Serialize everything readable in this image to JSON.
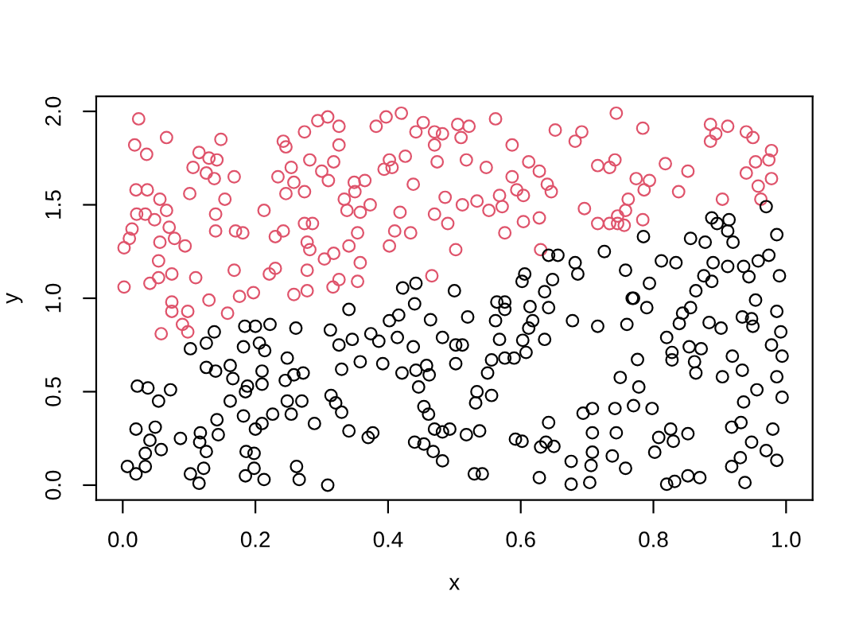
{
  "chart_data": {
    "type": "scatter",
    "xlabel": "x",
    "ylabel": "y",
    "xlim": [
      -0.04,
      1.04
    ],
    "ylim": [
      -0.08,
      2.08
    ],
    "xticks": [
      {
        "value": 0,
        "label": "0.0"
      },
      {
        "value": 0.2,
        "label": "0.2"
      },
      {
        "value": 0.4,
        "label": "0.4"
      },
      {
        "value": 0.6,
        "label": "0.6"
      },
      {
        "value": 0.8,
        "label": "0.8"
      },
      {
        "value": 1,
        "label": "1.0"
      }
    ],
    "yticks": [
      {
        "value": 0,
        "label": "0.0"
      },
      {
        "value": 0.5,
        "label": "0.5"
      },
      {
        "value": 1,
        "label": "1.0"
      },
      {
        "value": 1.5,
        "label": "1.5"
      },
      {
        "value": 2,
        "label": "2.0"
      }
    ],
    "marker": "circle",
    "grid": false,
    "series": [
      {
        "color": "#df536b",
        "x": [
          0.024,
          0.018,
          0.036,
          0.066,
          0.002,
          0.01,
          0.014,
          0.021,
          0.034,
          0.048,
          0.02,
          0.037,
          0.056,
          0.066,
          0.07,
          0.078,
          0.094,
          0.056,
          0.002,
          0.041,
          0.054,
          0.074,
          0.054,
          0.074,
          0.074,
          0.09,
          0.098,
          0.058,
          0.098,
          0.11,
          0.101,
          0.115,
          0.13,
          0.142,
          0.148,
          0.106,
          0.126,
          0.138,
          0.168,
          0.154,
          0.14,
          0.14,
          0.17,
          0.181,
          0.168,
          0.13,
          0.158,
          0.176,
          0.197,
          0.213,
          0.23,
          0.242,
          0.221,
          0.23,
          0.242,
          0.246,
          0.234,
          0.254,
          0.246,
          0.258,
          0.274,
          0.274,
          0.294,
          0.309,
          0.326,
          0.326,
          0.282,
          0.3,
          0.31,
          0.318,
          0.274,
          0.286,
          0.278,
          0.282,
          0.278,
          0.258,
          0.278,
          0.304,
          0.318,
          0.326,
          0.317,
          0.341,
          0.354,
          0.358,
          0.354,
          0.338,
          0.334,
          0.35,
          0.349,
          0.365,
          0.373,
          0.358,
          0.382,
          0.397,
          0.42,
          0.453,
          0.442,
          0.47,
          0.482,
          0.47,
          0.402,
          0.426,
          0.394,
          0.406,
          0.438,
          0.418,
          0.41,
          0.434,
          0.402,
          0.474,
          0.486,
          0.47,
          0.49,
          0.502,
          0.466,
          0.505,
          0.51,
          0.522,
          0.518,
          0.512,
          0.534,
          0.552,
          0.548,
          0.562,
          0.568,
          0.572,
          0.587,
          0.587,
          0.594,
          0.604,
          0.612,
          0.604,
          0.576,
          0.628,
          0.64,
          0.646,
          0.628,
          0.63,
          0.652,
          0.682,
          0.692,
          0.696,
          0.716,
          0.734,
          0.742,
          0.744,
          0.716,
          0.734,
          0.746,
          0.756,
          0.746,
          0.758,
          0.762,
          0.774,
          0.786,
          0.794,
          0.784,
          0.784,
          0.818,
          0.838,
          0.852,
          0.886,
          0.886,
          0.894,
          0.912,
          0.94,
          0.95,
          0.904,
          0.94,
          0.954,
          0.974,
          0.978,
          0.978,
          0.958,
          0.962
        ],
        "values": [
          1.96,
          1.82,
          1.77,
          1.86,
          1.27,
          1.32,
          1.37,
          1.45,
          1.45,
          1.42,
          1.58,
          1.58,
          1.53,
          1.47,
          1.38,
          1.32,
          1.28,
          1.3,
          1.06,
          1.08,
          1.11,
          1.13,
          1.2,
          0.98,
          0.93,
          0.86,
          0.82,
          0.81,
          0.93,
          1.11,
          1.56,
          1.78,
          1.75,
          1.74,
          1.85,
          1.7,
          1.67,
          1.64,
          1.65,
          1.53,
          1.45,
          1.36,
          1.36,
          1.35,
          1.15,
          0.99,
          0.92,
          1.01,
          1.03,
          1.47,
          1.33,
          1.36,
          1.13,
          1.16,
          1.84,
          1.81,
          1.65,
          1.7,
          1.56,
          1.62,
          1.57,
          1.89,
          1.95,
          1.97,
          1.92,
          1.82,
          1.74,
          1.68,
          1.63,
          1.73,
          1.4,
          1.4,
          1.3,
          1.26,
          1.15,
          1.02,
          1.04,
          1.21,
          1.24,
          1.1,
          1.06,
          1.28,
          1.35,
          1.19,
          1.09,
          1.47,
          1.53,
          1.57,
          1.62,
          1.63,
          1.5,
          1.46,
          1.92,
          1.97,
          1.99,
          1.94,
          1.89,
          1.89,
          1.88,
          1.82,
          1.74,
          1.76,
          1.69,
          1.7,
          1.61,
          1.46,
          1.36,
          1.35,
          1.28,
          1.73,
          1.54,
          1.45,
          1.4,
          1.26,
          1.12,
          1.93,
          1.86,
          1.92,
          1.74,
          1.5,
          1.52,
          1.47,
          1.7,
          1.96,
          1.55,
          1.49,
          1.82,
          1.65,
          1.58,
          1.55,
          1.73,
          1.41,
          1.35,
          1.68,
          1.61,
          1.57,
          1.43,
          1.26,
          1.9,
          1.84,
          1.89,
          1.48,
          1.71,
          1.7,
          1.74,
          1.99,
          1.4,
          1.4,
          1.4,
          1.39,
          1.44,
          1.47,
          1.53,
          1.64,
          1.58,
          1.63,
          1.91,
          1.42,
          1.72,
          1.57,
          1.68,
          1.93,
          1.84,
          1.88,
          1.92,
          1.89,
          1.86,
          1.53,
          1.67,
          1.73,
          1.74,
          1.79,
          1.64,
          1.6,
          1.53
        ]
      },
      {
        "color": "#000000",
        "x": [
          0.022,
          0.038,
          0.054,
          0.072,
          0.02,
          0.049,
          0.041,
          0.058,
          0.034,
          0.007,
          0.02,
          0.034,
          0.087,
          0.117,
          0.116,
          0.126,
          0.122,
          0.102,
          0.115,
          0.144,
          0.142,
          0.162,
          0.166,
          0.185,
          0.188,
          0.182,
          0.2,
          0.21,
          0.186,
          0.198,
          0.185,
          0.198,
          0.213,
          0.226,
          0.248,
          0.254,
          0.27,
          0.262,
          0.266,
          0.289,
          0.309,
          0.314,
          0.321,
          0.33,
          0.341,
          0.37,
          0.377,
          0.245,
          0.258,
          0.272,
          0.21,
          0.21,
          0.248,
          0.214,
          0.206,
          0.184,
          0.2,
          0.222,
          0.261,
          0.182,
          0.162,
          0.14,
          0.126,
          0.126,
          0.138,
          0.102,
          0.313,
          0.326,
          0.346,
          0.358,
          0.33,
          0.341,
          0.374,
          0.386,
          0.392,
          0.402,
          0.414,
          0.416,
          0.422,
          0.442,
          0.44,
          0.464,
          0.482,
          0.438,
          0.421,
          0.442,
          0.446,
          0.458,
          0.462,
          0.454,
          0.461,
          0.47,
          0.482,
          0.493,
          0.44,
          0.454,
          0.468,
          0.482,
          0.5,
          0.502,
          0.502,
          0.52,
          0.512,
          0.518,
          0.538,
          0.53,
          0.542,
          0.534,
          0.532,
          0.556,
          0.55,
          0.556,
          0.576,
          0.59,
          0.568,
          0.562,
          0.564,
          0.576,
          0.576,
          0.603,
          0.608,
          0.612,
          0.618,
          0.614,
          0.602,
          0.606,
          0.636,
          0.648,
          0.642,
          0.636,
          0.642,
          0.656,
          0.682,
          0.686,
          0.678,
          0.726,
          0.716,
          0.758,
          0.76,
          0.768,
          0.79,
          0.794,
          0.785,
          0.812,
          0.834,
          0.844,
          0.839,
          0.82,
          0.828,
          0.828,
          0.856,
          0.854,
          0.862,
          0.872,
          0.864,
          0.856,
          0.878,
          0.888,
          0.896,
          0.914,
          0.912,
          0.92,
          0.89,
          0.876,
          0.888,
          0.864,
          0.912,
          0.936,
          0.944,
          0.958,
          0.974,
          0.986,
          0.97,
          0.99,
          0.954,
          0.884,
          0.902,
          0.934,
          0.948,
          0.95,
          0.986,
          0.992,
          0.978,
          0.994,
          0.986,
          0.919,
          0.904,
          0.934,
          0.956,
          0.994,
          0.936,
          0.918,
          0.932,
          0.948,
          0.98,
          0.97,
          0.986,
          0.931,
          0.918,
          0.938,
          0.87,
          0.852,
          0.832,
          0.82,
          0.826,
          0.83,
          0.852,
          0.802,
          0.808,
          0.798,
          0.778,
          0.77,
          0.75,
          0.742,
          0.744,
          0.708,
          0.694,
          0.708,
          0.708,
          0.706,
          0.704,
          0.676,
          0.676,
          0.738,
          0.758,
          0.628,
          0.642,
          0.638,
          0.63,
          0.65,
          0.592,
          0.602,
          0.776,
          0.77
        ],
        "values": [
          0.53,
          0.52,
          0.45,
          0.51,
          0.3,
          0.31,
          0.24,
          0.19,
          0.17,
          0.1,
          0.06,
          0.1,
          0.25,
          0.28,
          0.23,
          0.18,
          0.09,
          0.06,
          0.01,
          0.27,
          0.35,
          0.45,
          0.57,
          0.5,
          0.53,
          0.37,
          0.3,
          0.33,
          0.18,
          0.17,
          0.05,
          0.09,
          0.03,
          0.38,
          0.45,
          0.38,
          0.45,
          0.1,
          0.03,
          0.33,
          0.0,
          0.48,
          0.44,
          0.39,
          0.29,
          0.255,
          0.28,
          0.56,
          0.59,
          0.6,
          0.54,
          0.61,
          0.68,
          0.72,
          0.76,
          0.85,
          0.85,
          0.86,
          0.84,
          0.74,
          0.64,
          0.61,
          0.63,
          0.76,
          0.82,
          0.73,
          0.83,
          0.75,
          0.78,
          0.66,
          0.62,
          0.94,
          0.81,
          0.77,
          0.65,
          0.88,
          0.79,
          0.91,
          1.055,
          1.08,
          0.97,
          0.885,
          0.79,
          0.74,
          0.6,
          0.615,
          0.525,
          0.64,
          0.59,
          0.42,
          0.38,
          0.3,
          0.285,
          0.3,
          0.23,
          0.22,
          0.18,
          0.13,
          1.04,
          0.75,
          0.65,
          0.9,
          0.75,
          0.27,
          0.29,
          0.06,
          0.06,
          0.5,
          0.44,
          0.48,
          0.6,
          0.67,
          0.68,
          0.68,
          0.78,
          0.88,
          0.98,
          0.98,
          0.94,
          0.775,
          0.71,
          0.84,
          0.88,
          0.955,
          1.09,
          1.13,
          1.035,
          1.1,
          0.95,
          0.78,
          1.23,
          1.23,
          1.19,
          1.13,
          0.88,
          1.25,
          0.85,
          1.15,
          0.86,
          1.0,
          0.95,
          1.08,
          1.33,
          1.2,
          1.19,
          0.92,
          0.865,
          0.79,
          0.71,
          0.67,
          0.95,
          0.74,
          0.66,
          0.73,
          0.6,
          1.32,
          1.3,
          1.43,
          1.4,
          1.42,
          1.36,
          1.3,
          1.19,
          1.12,
          1.09,
          1.04,
          1.17,
          1.17,
          1.115,
          1.2,
          1.23,
          1.34,
          1.49,
          1.12,
          0.99,
          0.87,
          0.84,
          0.9,
          0.89,
          0.85,
          0.93,
          0.82,
          0.75,
          0.69,
          0.58,
          0.69,
          0.58,
          0.615,
          0.51,
          0.47,
          0.445,
          0.31,
          0.335,
          0.23,
          0.3,
          0.185,
          0.133,
          0.147,
          0.1,
          0.014,
          0.04,
          0.05,
          0.02,
          0.005,
          0.3,
          0.235,
          0.275,
          0.176,
          0.255,
          0.41,
          0.525,
          0.425,
          0.576,
          0.41,
          0.28,
          0.41,
          0.385,
          0.28,
          0.176,
          0.105,
          0.014,
          0.127,
          0.005,
          0.156,
          0.09,
          0.04,
          0.335,
          0.23,
          0.204,
          0.207,
          0.246,
          0.235,
          0.672,
          1.0
        ]
      }
    ]
  }
}
